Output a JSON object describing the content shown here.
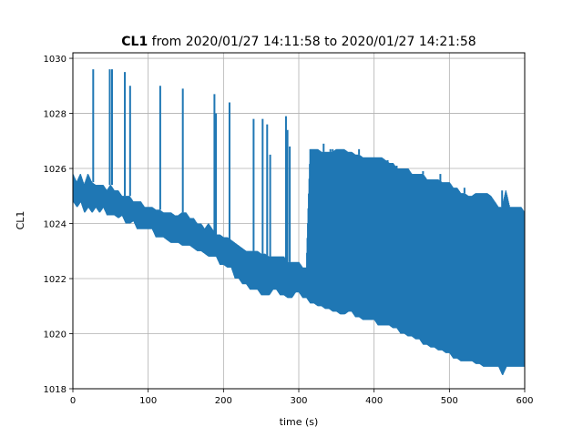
{
  "chart_data": {
    "type": "line",
    "title_bold": "CL1",
    "title_rest": " from 2020/01/27 14:11:58 to 2020/01/27 14:21:58",
    "xlabel": "time (s)",
    "ylabel": "CL1",
    "xlim": [
      0,
      600
    ],
    "ylim": [
      1018,
      1030.2
    ],
    "xticks": [
      0,
      100,
      200,
      300,
      400,
      500,
      600
    ],
    "yticks": [
      1018,
      1020,
      1022,
      1024,
      1026,
      1028,
      1030
    ],
    "grid": true,
    "line_color": "#1f77b4",
    "series": [
      {
        "x": [
          0,
          5,
          10,
          15,
          20,
          25,
          30,
          35,
          40,
          45,
          50,
          55,
          60,
          65,
          70,
          75,
          80,
          85,
          90,
          95,
          100,
          105,
          110,
          115,
          120,
          125,
          130,
          135,
          140,
          145,
          150,
          155,
          160,
          165,
          170,
          175,
          180,
          185,
          190,
          195,
          200,
          205,
          210,
          215,
          220,
          225,
          230,
          235,
          240,
          245,
          250,
          255,
          260,
          265,
          270,
          275,
          280,
          285,
          290,
          295,
          300,
          305,
          310,
          315,
          320,
          325,
          330,
          335,
          340,
          345,
          350,
          355,
          360,
          365,
          370,
          375,
          380,
          385,
          390,
          395,
          400,
          405,
          410,
          415,
          420,
          425,
          430,
          435,
          440,
          445,
          450,
          455,
          460,
          465,
          470,
          475,
          480,
          485,
          490,
          495,
          500,
          505,
          510,
          515,
          520,
          525,
          530,
          535,
          540,
          545,
          550,
          555,
          560,
          565,
          570,
          575,
          580,
          585,
          590,
          595,
          600
        ],
        "low": [
          1024.8,
          1024.6,
          1024.8,
          1024.4,
          1024.6,
          1024.4,
          1024.6,
          1024.4,
          1024.6,
          1024.3,
          1024.3,
          1024.3,
          1024.2,
          1024.3,
          1024.0,
          1024.0,
          1024.1,
          1023.8,
          1023.8,
          1023.8,
          1023.8,
          1023.8,
          1023.5,
          1023.5,
          1023.5,
          1023.4,
          1023.3,
          1023.3,
          1023.3,
          1023.2,
          1023.2,
          1023.2,
          1023.1,
          1023.0,
          1023.0,
          1022.9,
          1022.8,
          1022.8,
          1022.8,
          1022.5,
          1022.5,
          1022.4,
          1022.4,
          1022.0,
          1022.0,
          1021.8,
          1021.8,
          1021.6,
          1021.6,
          1021.6,
          1021.4,
          1021.4,
          1021.4,
          1021.6,
          1021.6,
          1021.4,
          1021.4,
          1021.3,
          1021.3,
          1021.5,
          1021.5,
          1021.3,
          1021.3,
          1021.1,
          1021.1,
          1021.0,
          1021.0,
          1020.9,
          1020.9,
          1020.8,
          1020.8,
          1020.7,
          1020.7,
          1020.8,
          1020.8,
          1020.6,
          1020.6,
          1020.5,
          1020.5,
          1020.5,
          1020.5,
          1020.3,
          1020.3,
          1020.3,
          1020.3,
          1020.2,
          1020.2,
          1020.0,
          1020.0,
          1019.9,
          1019.9,
          1019.8,
          1019.8,
          1019.6,
          1019.6,
          1019.5,
          1019.5,
          1019.4,
          1019.4,
          1019.3,
          1019.3,
          1019.1,
          1019.1,
          1019.0,
          1019.0,
          1019.0,
          1019.0,
          1018.9,
          1018.9,
          1018.8,
          1018.8,
          1018.8,
          1018.8,
          1018.8,
          1018.5,
          1018.8,
          1018.8,
          1018.8,
          1018.8,
          1018.8,
          1018.8
        ],
        "high": [
          1025.8,
          1025.5,
          1025.8,
          1025.4,
          1025.8,
          1025.5,
          1025.4,
          1025.4,
          1025.4,
          1025.2,
          1025.4,
          1025.2,
          1025.2,
          1025.0,
          1025.0,
          1025.0,
          1024.8,
          1024.8,
          1024.8,
          1024.6,
          1024.6,
          1024.6,
          1024.5,
          1024.5,
          1024.4,
          1024.4,
          1024.4,
          1024.3,
          1024.3,
          1024.4,
          1024.4,
          1024.2,
          1024.2,
          1024.0,
          1024.0,
          1023.8,
          1024.0,
          1023.8,
          1023.6,
          1023.6,
          1023.5,
          1023.5,
          1023.4,
          1023.3,
          1023.2,
          1023.1,
          1023.0,
          1023.0,
          1023.0,
          1023.0,
          1022.9,
          1022.9,
          1022.8,
          1022.8,
          1022.8,
          1022.8,
          1022.8,
          1022.6,
          1022.6,
          1022.6,
          1022.6,
          1022.4,
          1022.4,
          1026.7,
          1026.7,
          1026.7,
          1026.6,
          1026.6,
          1026.6,
          1026.6,
          1026.7,
          1026.7,
          1026.7,
          1026.6,
          1026.6,
          1026.5,
          1026.5,
          1026.4,
          1026.4,
          1026.4,
          1026.4,
          1026.4,
          1026.4,
          1026.3,
          1026.2,
          1026.2,
          1026.0,
          1026.0,
          1026.0,
          1026.0,
          1025.8,
          1025.8,
          1025.8,
          1025.8,
          1025.6,
          1025.6,
          1025.6,
          1025.6,
          1025.5,
          1025.5,
          1025.5,
          1025.3,
          1025.3,
          1025.1,
          1025.1,
          1025.0,
          1025.0,
          1025.1,
          1025.1,
          1025.1,
          1025.1,
          1025.0,
          1024.8,
          1024.6,
          1024.6,
          1025.2,
          1024.6,
          1024.6,
          1024.6,
          1024.6,
          1024.4
        ]
      }
    ],
    "spikes": [
      {
        "x": 27,
        "y": 1029.6
      },
      {
        "x": 49,
        "y": 1029.6
      },
      {
        "x": 52,
        "y": 1029.6
      },
      {
        "x": 69,
        "y": 1029.5
      },
      {
        "x": 76,
        "y": 1029.0
      },
      {
        "x": 116,
        "y": 1029.0
      },
      {
        "x": 146,
        "y": 1028.9
      },
      {
        "x": 188,
        "y": 1028.7
      },
      {
        "x": 190,
        "y": 1028.0
      },
      {
        "x": 208,
        "y": 1028.4
      },
      {
        "x": 240,
        "y": 1027.8
      },
      {
        "x": 252,
        "y": 1027.8
      },
      {
        "x": 258,
        "y": 1027.6
      },
      {
        "x": 262,
        "y": 1026.5
      },
      {
        "x": 283,
        "y": 1027.9
      },
      {
        "x": 285,
        "y": 1027.4
      },
      {
        "x": 288,
        "y": 1026.8
      },
      {
        "x": 333,
        "y": 1026.9
      },
      {
        "x": 342,
        "y": 1026.7
      },
      {
        "x": 345,
        "y": 1026.7
      },
      {
        "x": 355,
        "y": 1026.7
      },
      {
        "x": 365,
        "y": 1026.6
      },
      {
        "x": 380,
        "y": 1026.7
      },
      {
        "x": 392,
        "y": 1026.4
      },
      {
        "x": 402,
        "y": 1026.4
      },
      {
        "x": 418,
        "y": 1026.3
      },
      {
        "x": 430,
        "y": 1026.1
      },
      {
        "x": 465,
        "y": 1025.9
      },
      {
        "x": 488,
        "y": 1025.8
      },
      {
        "x": 520,
        "y": 1025.3
      },
      {
        "x": 570,
        "y": 1025.2
      }
    ]
  }
}
